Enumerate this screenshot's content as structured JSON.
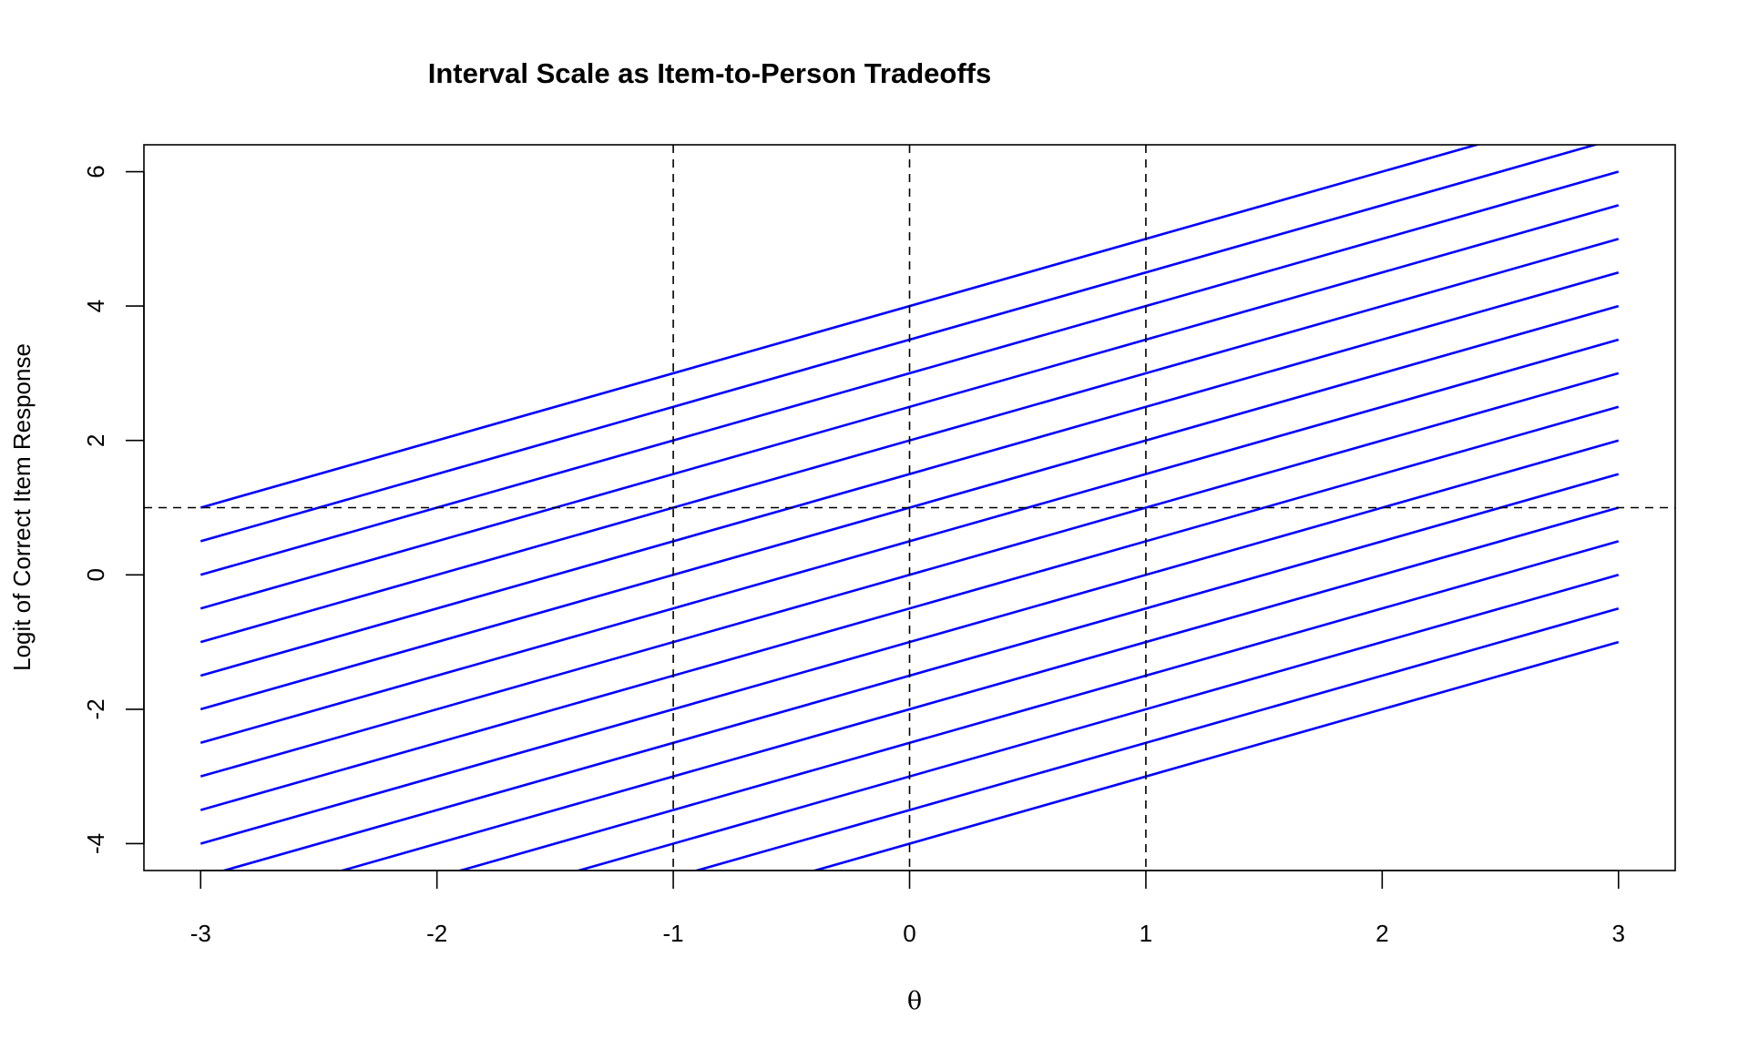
{
  "chart_data": {
    "type": "line",
    "title": "Interval Scale as Item-to-Person Tradeoffs",
    "xlabel": "θ",
    "ylabel": "Logit of Correct Item Response",
    "xlim": [
      -3.24,
      3.24
    ],
    "ylim": [
      -4.4,
      6.4
    ],
    "x_ticks": [
      "-3",
      "-2",
      "-1",
      "0",
      "1",
      "2",
      "3"
    ],
    "y_ticks": [
      "-4",
      "-2",
      "0",
      "2",
      "4",
      "6"
    ],
    "grid": false,
    "line_color": "#0000ff",
    "x_range": [
      -3,
      3
    ],
    "slope": 1,
    "intercepts": [
      4,
      3.5,
      3,
      2.5,
      2,
      1.5,
      1,
      0.5,
      0,
      -0.5,
      -1,
      -1.5,
      -2,
      -2.5,
      -3,
      -3.5,
      -4
    ],
    "reference_lines": {
      "vertical_dashed_x": [
        -1,
        0,
        1
      ],
      "horizontal_dashed_y": [
        1
      ]
    }
  }
}
